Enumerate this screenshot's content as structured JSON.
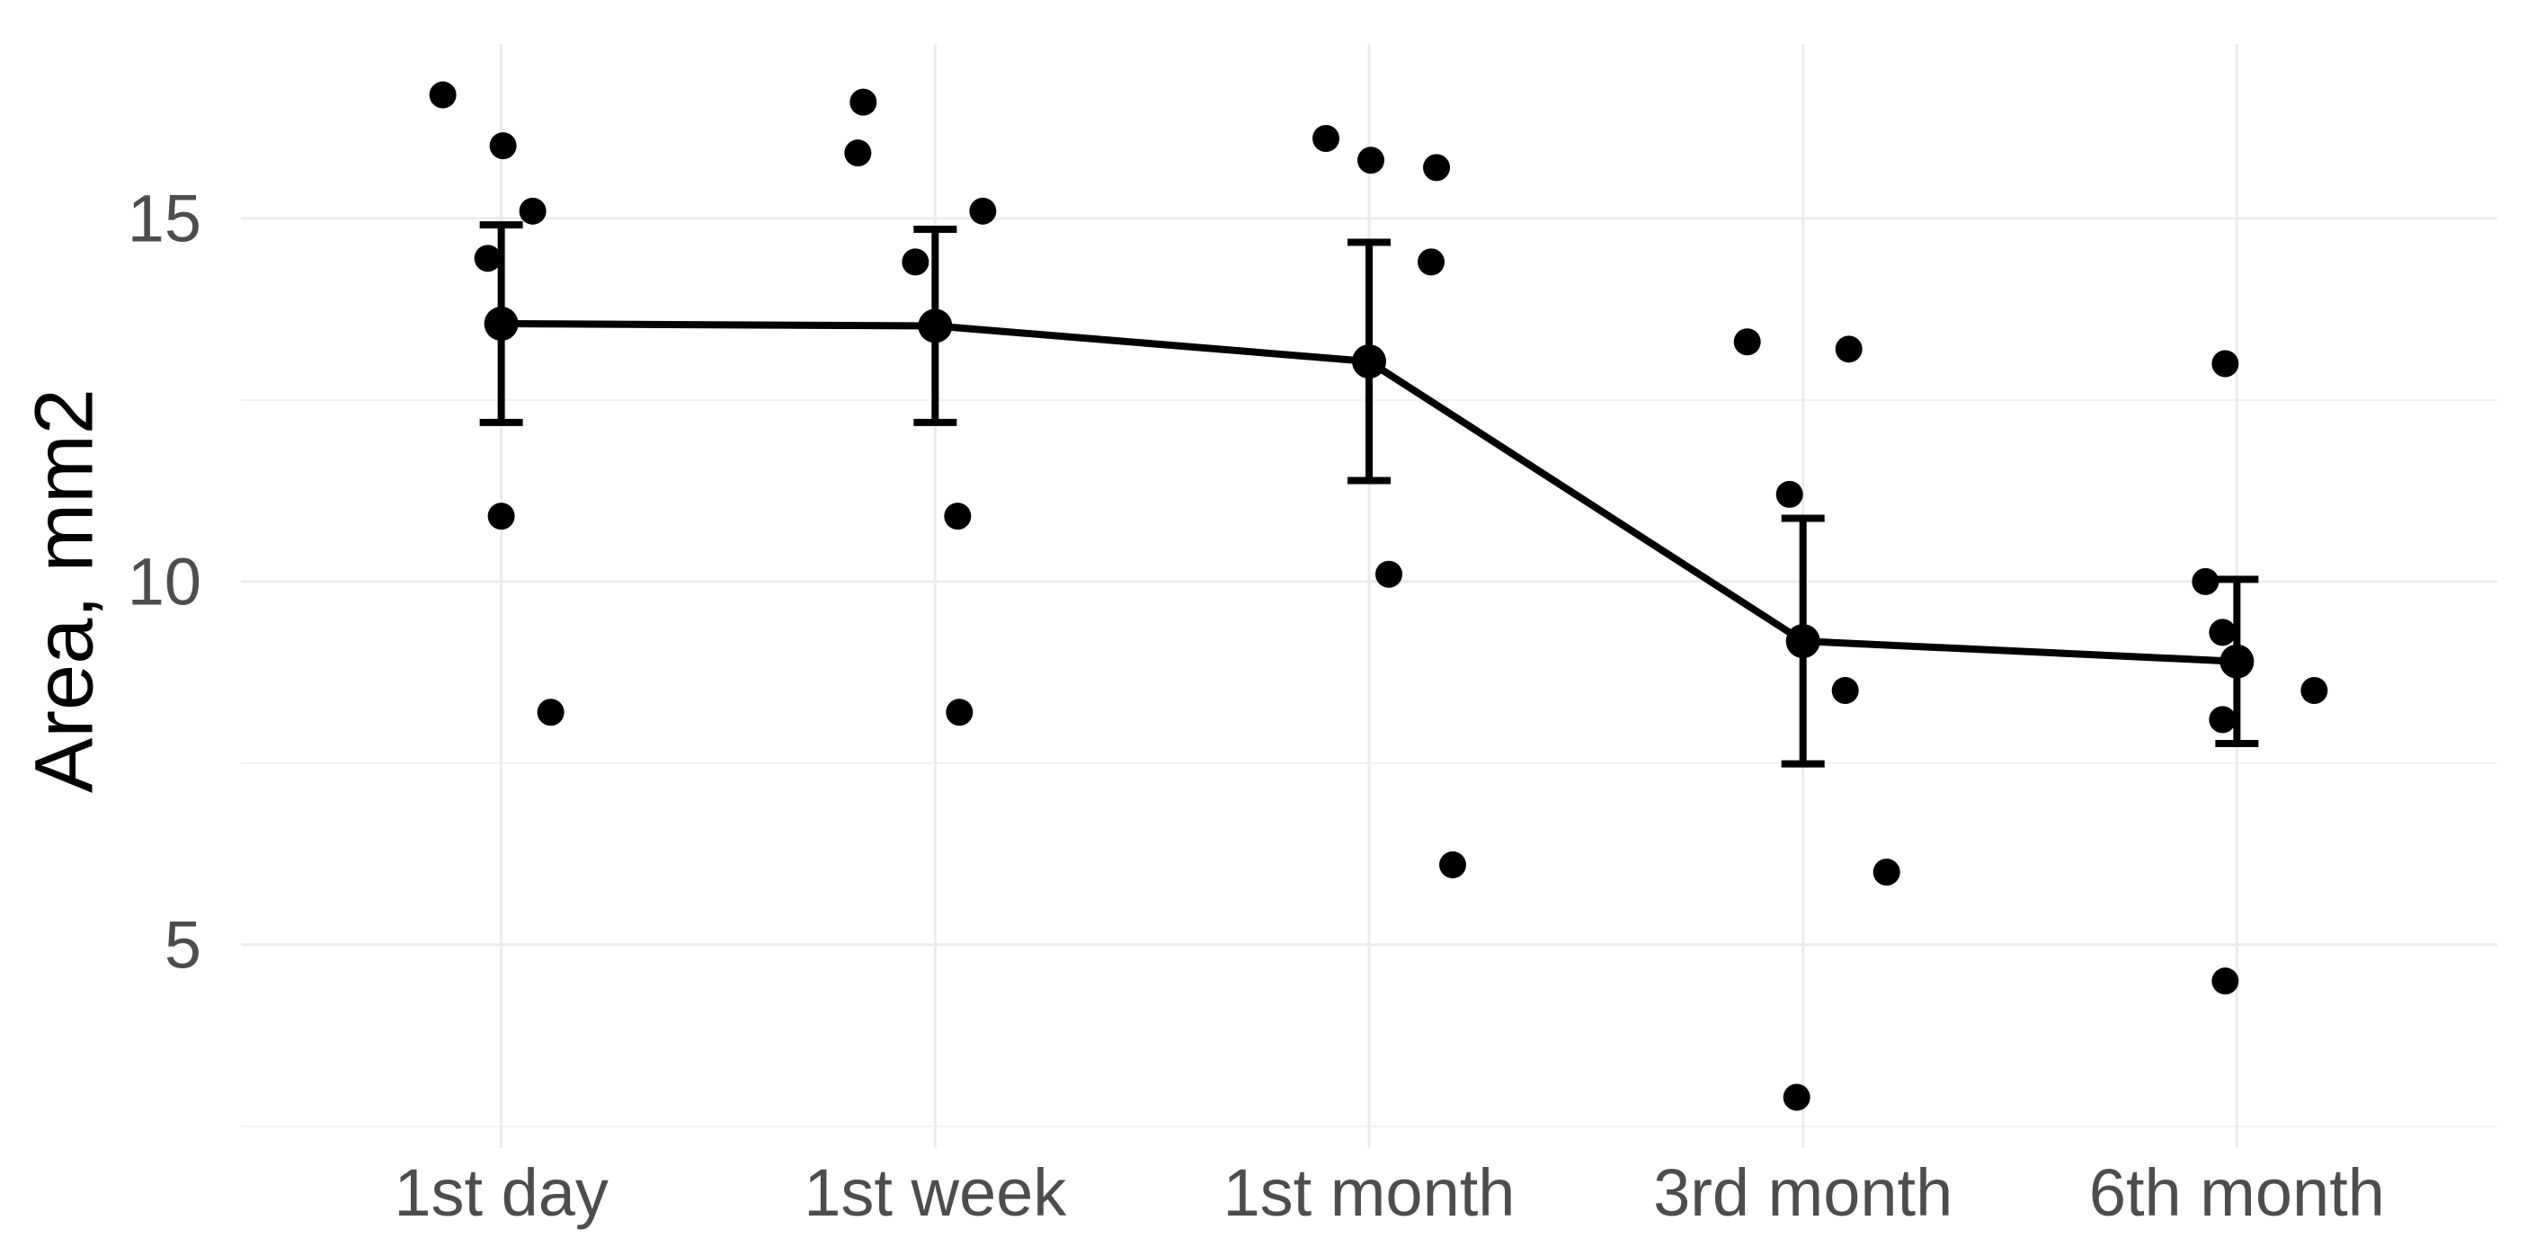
{
  "chart_data": {
    "type": "scatter",
    "title": "",
    "xlabel": "",
    "ylabel": "Area, mm2",
    "categories": [
      "1st day",
      "1st week",
      "1st month",
      "3rd month",
      "6th month"
    ],
    "y_tick_labels": [
      "15",
      "10",
      "5"
    ],
    "y_major_ticks": [
      15,
      10,
      5
    ],
    "y_minor_gridlines": [
      12.5,
      7.5,
      2.5
    ],
    "ylim": [
      2.2,
      17.4
    ],
    "grid": "horizontal major+minor light gray, vertical light gray at each category, no axis lines, no legend",
    "legend_position": "none",
    "series": [
      {
        "name": "individual measurements (jitter points)",
        "marker": "filled black circle",
        "points_by_category": [
          [
            {
              "v": 16.7,
              "dx": -65
            },
            {
              "v": 16.0,
              "dx": 2
            },
            {
              "v": 15.1,
              "dx": 35
            },
            {
              "v": 14.45,
              "dx": -15
            },
            {
              "v": 10.9,
              "dx": 0
            },
            {
              "v": 8.2,
              "dx": 55
            }
          ],
          [
            {
              "v": 16.6,
              "dx": -80
            },
            {
              "v": 15.9,
              "dx": -86
            },
            {
              "v": 15.1,
              "dx": 53
            },
            {
              "v": 14.4,
              "dx": -22
            },
            {
              "v": 10.9,
              "dx": 25
            },
            {
              "v": 8.2,
              "dx": 27
            }
          ],
          [
            {
              "v": 16.1,
              "dx": -48
            },
            {
              "v": 15.8,
              "dx": 2
            },
            {
              "v": 15.7,
              "dx": 75
            },
            {
              "v": 14.4,
              "dx": 69
            },
            {
              "v": 10.1,
              "dx": 22
            },
            {
              "v": 6.1,
              "dx": 93
            }
          ],
          [
            {
              "v": 13.3,
              "dx": -62
            },
            {
              "v": 13.2,
              "dx": 51
            },
            {
              "v": 11.2,
              "dx": -15
            },
            {
              "v": 8.5,
              "dx": 47
            },
            {
              "v": 6.0,
              "dx": 93
            },
            {
              "v": 2.9,
              "dx": -7
            }
          ],
          [
            {
              "v": 13.0,
              "dx": -13
            },
            {
              "v": 10.0,
              "dx": -35
            },
            {
              "v": 9.3,
              "dx": -16
            },
            {
              "v": 8.5,
              "dx": 86
            },
            {
              "v": 8.1,
              "dx": -16
            },
            {
              "v": 4.5,
              "dx": -13
            }
          ]
        ]
      },
      {
        "name": "group mean with SEM error bars, connected by line",
        "marker": "large filled black circle",
        "means": [
          13.55,
          13.52,
          13.03,
          9.18,
          8.9
        ],
        "sem": [
          1.36,
          1.33,
          1.64,
          1.69,
          1.13
        ],
        "upper": [
          14.91,
          14.85,
          14.67,
          10.87,
          10.03
        ],
        "lower": [
          12.19,
          12.19,
          11.39,
          7.49,
          7.77
        ]
      }
    ],
    "colors": {
      "points": "#000000",
      "mean_points": "#000000",
      "mean_line": "#000000",
      "error_bars": "#000000",
      "grid_major": "#EBEBEB",
      "grid_minor": "#F1F1F1",
      "tick_label": "#4D4D4D",
      "axis_title": "#000000",
      "background": "#FFFFFF"
    }
  }
}
